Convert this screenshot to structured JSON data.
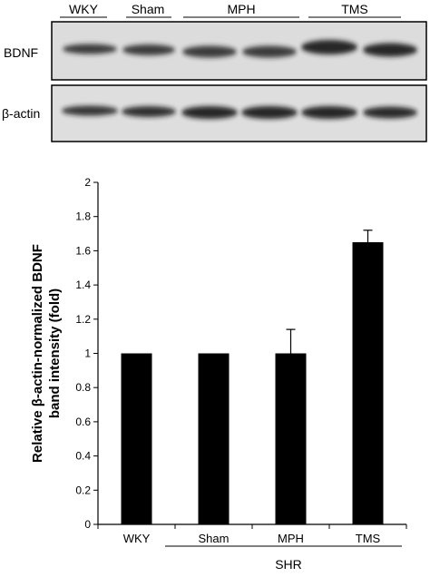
{
  "blot": {
    "lanes": [
      "WKY",
      "Sham",
      "MPH",
      "TMS"
    ],
    "rows": [
      "BDNF",
      "β-actin"
    ]
  },
  "chart_data": {
    "type": "bar",
    "categories": [
      "WKY",
      "Sham",
      "MPH",
      "TMS"
    ],
    "values": [
      1,
      1,
      1,
      1.65
    ],
    "error_up": [
      0,
      0,
      0.14,
      0.07
    ],
    "ylabel_lines": [
      "Relative β-actin-normalized BDNF",
      "band intensity (fold)"
    ],
    "ylim": [
      0,
      2
    ],
    "yticks": [
      "0",
      "0.2",
      "0.4",
      "0.6",
      "0.8",
      "1",
      "1.2",
      "1.4",
      "1.6",
      "1.8",
      "2"
    ],
    "group_label": "SHR",
    "grid": false,
    "legend": "none",
    "bar_color": "#000000"
  }
}
